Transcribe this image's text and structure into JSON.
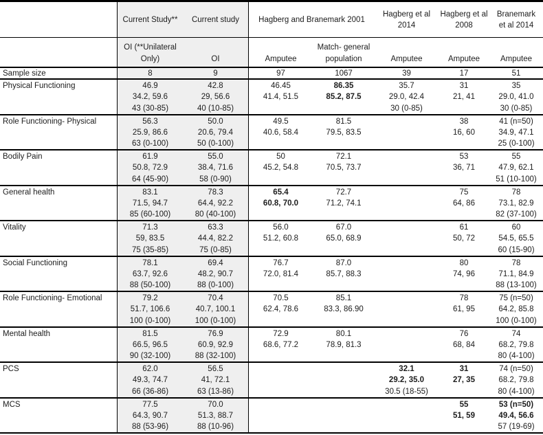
{
  "table": {
    "shade_color": "#efefef",
    "border_color": "#000000",
    "header_row1": {
      "current_study_uni": "Current Study**",
      "current_study": "Current study",
      "hagberg_branemark_2001": "Hagberg and Branemark 2001",
      "hagberg_2014": [
        "Hagberg et al",
        "2014"
      ],
      "hagberg_2008": [
        "Hagberg et al",
        "2008"
      ],
      "branemark_2014": [
        "Branemark",
        "et al 2014"
      ]
    },
    "header_row2": {
      "current_study_uni": [
        "OI (**Unilateral",
        "Only)"
      ],
      "current_study": [
        "OI"
      ],
      "amputee_2001": [
        "Amputee"
      ],
      "match_general": [
        "Match- general",
        "population"
      ],
      "amputee_2014": [
        "Amputee"
      ],
      "amputee_2008": [
        "Amputee"
      ],
      "amputee_b2014": [
        "Amputee"
      ]
    },
    "sample_row": {
      "label": "Sample size",
      "values": [
        "8",
        "9",
        "97",
        "1067",
        "39",
        "17",
        "51"
      ]
    },
    "rows": [
      {
        "label": "Physical Functioning",
        "cells": [
          {
            "lines": [
              "46.9",
              "34.2, 59.6",
              "43 (30-85)"
            ]
          },
          {
            "lines": [
              "42.8",
              "29, 56.6",
              "40 (10-85)"
            ]
          },
          {
            "lines": [
              "46.45",
              "41.4, 51.5"
            ]
          },
          {
            "lines": [
              "86.35",
              "85.2, 87.5"
            ],
            "bold": [
              0,
              1
            ]
          },
          {
            "lines": [
              "35.7",
              "29.0, 42.4",
              "30 (0-85)"
            ]
          },
          {
            "lines": [
              "31",
              "21, 41"
            ]
          },
          {
            "lines": [
              "35",
              "29.0, 41.0",
              "30 (0-85)"
            ]
          }
        ]
      },
      {
        "label": "Role Functioning- Physical",
        "cells": [
          {
            "lines": [
              "56.3",
              "25.9, 86.6",
              "63 (0-100)"
            ]
          },
          {
            "lines": [
              "50.0",
              "20.6, 79.4",
              "50 (0-100)"
            ]
          },
          {
            "lines": [
              "49.5",
              "40.6, 58.4"
            ]
          },
          {
            "lines": [
              "81.5",
              "79.5, 83.5"
            ]
          },
          {
            "lines": []
          },
          {
            "lines": [
              "38",
              "16, 60"
            ]
          },
          {
            "lines": [
              "41 (n=50)",
              "34.9, 47.1",
              "25 (0-100)"
            ]
          }
        ]
      },
      {
        "label": "Bodily Pain",
        "cells": [
          {
            "lines": [
              "61.9",
              "50.8, 72.9",
              "64 (45-90)"
            ]
          },
          {
            "lines": [
              "55.0",
              "38.4, 71.6",
              "58 (0-90)"
            ]
          },
          {
            "lines": [
              "50",
              "45.2, 54.8"
            ]
          },
          {
            "lines": [
              "72.1",
              "70.5, 73.7"
            ]
          },
          {
            "lines": []
          },
          {
            "lines": [
              "53",
              "36, 71"
            ]
          },
          {
            "lines": [
              "55",
              "47.9, 62.1",
              "51 (10-100)"
            ]
          }
        ]
      },
      {
        "label": "General health",
        "cells": [
          {
            "lines": [
              "83.1",
              "71.5, 94.7",
              "85 (60-100)"
            ]
          },
          {
            "lines": [
              "78.3",
              "64.4, 92.2",
              "80 (40-100)"
            ]
          },
          {
            "lines": [
              "65.4",
              "60.8, 70.0"
            ],
            "bold": [
              0,
              1
            ]
          },
          {
            "lines": [
              "72.7",
              "71.2, 74.1"
            ]
          },
          {
            "lines": []
          },
          {
            "lines": [
              "75",
              "64, 86"
            ]
          },
          {
            "lines": [
              "78",
              "73.1, 82.9",
              "82 (37-100)"
            ]
          }
        ]
      },
      {
        "label": "Vitality",
        "cells": [
          {
            "lines": [
              "71.3",
              "59, 83.5",
              "75 (35-85)"
            ]
          },
          {
            "lines": [
              "63.3",
              "44.4, 82.2",
              "75 (0-85)"
            ]
          },
          {
            "lines": [
              "56.0",
              "51.2, 60.8"
            ]
          },
          {
            "lines": [
              "67.0",
              "65.0, 68.9"
            ]
          },
          {
            "lines": []
          },
          {
            "lines": [
              "61",
              "50, 72"
            ]
          },
          {
            "lines": [
              "60",
              "54.5, 65.5",
              "60 (15-90)"
            ]
          }
        ]
      },
      {
        "label": "Social Functioning",
        "cells": [
          {
            "lines": [
              "78.1",
              "63.7, 92.6",
              "88 (50-100)"
            ]
          },
          {
            "lines": [
              "69.4",
              "48.2, 90.7",
              "88 (0-100)"
            ]
          },
          {
            "lines": [
              "76.7",
              "72.0, 81.4"
            ]
          },
          {
            "lines": [
              "87.0",
              "85.7, 88.3"
            ]
          },
          {
            "lines": []
          },
          {
            "lines": [
              "80",
              "74, 96"
            ]
          },
          {
            "lines": [
              "78",
              "71.1, 84.9",
              "88 (13-100)"
            ]
          }
        ]
      },
      {
        "label": "Role Functioning- Emotional",
        "cells": [
          {
            "lines": [
              "79.2",
              "51.7, 106.6",
              "100 (0-100)"
            ]
          },
          {
            "lines": [
              "70.4",
              "40.7, 100.1",
              "100 (0-100)"
            ]
          },
          {
            "lines": [
              "70.5",
              "62.4, 78.6"
            ]
          },
          {
            "lines": [
              "85.1",
              "83.3, 86.90"
            ]
          },
          {
            "lines": []
          },
          {
            "lines": [
              "78",
              "61, 95"
            ]
          },
          {
            "lines": [
              "75 (n=50)",
              "64.2, 85.8",
              "100 (0-100)"
            ]
          }
        ]
      },
      {
        "label": "Mental health",
        "cells": [
          {
            "lines": [
              "81.5",
              "66.5, 96.5",
              "90 (32-100)"
            ]
          },
          {
            "lines": [
              "76.9",
              "60.9, 92.9",
              "88 (32-100)"
            ]
          },
          {
            "lines": [
              "72.9",
              "68.6, 77.2"
            ]
          },
          {
            "lines": [
              "80.1",
              "78.9, 81.3"
            ]
          },
          {
            "lines": []
          },
          {
            "lines": [
              "76",
              "68, 84"
            ]
          },
          {
            "lines": [
              "74",
              "68.2, 79.8",
              "80 (4-100)"
            ]
          }
        ]
      },
      {
        "label": "PCS",
        "cells": [
          {
            "lines": [
              "62.0",
              "49.3, 74.7",
              "66 (36-86)"
            ]
          },
          {
            "lines": [
              "56.5",
              "41, 72.1",
              "63 (13-86)"
            ]
          },
          {
            "lines": []
          },
          {
            "lines": []
          },
          {
            "lines": [
              "32.1",
              "29.2, 35.0",
              "30.5 (18-55)"
            ],
            "bold": [
              0,
              1
            ]
          },
          {
            "lines": [
              "31",
              "27, 35"
            ],
            "bold": [
              0,
              1
            ]
          },
          {
            "lines": [
              "74 (n=50)",
              "68.2, 79.8",
              "80 (4-100)"
            ]
          }
        ]
      },
      {
        "label": "MCS",
        "cells": [
          {
            "lines": [
              "77.5",
              "64.3, 90.7",
              "88 (53-96)"
            ]
          },
          {
            "lines": [
              "70.0",
              "51.3, 88.7",
              "88 (10-96)"
            ]
          },
          {
            "lines": []
          },
          {
            "lines": []
          },
          {
            "lines": []
          },
          {
            "lines": [
              "55",
              "51, 59"
            ],
            "bold": [
              0,
              1
            ]
          },
          {
            "lines": [
              "53 (n=50)",
              "49.4, 56.6",
              "57 (19-69)"
            ],
            "bold": [
              0,
              1
            ]
          }
        ]
      }
    ]
  }
}
